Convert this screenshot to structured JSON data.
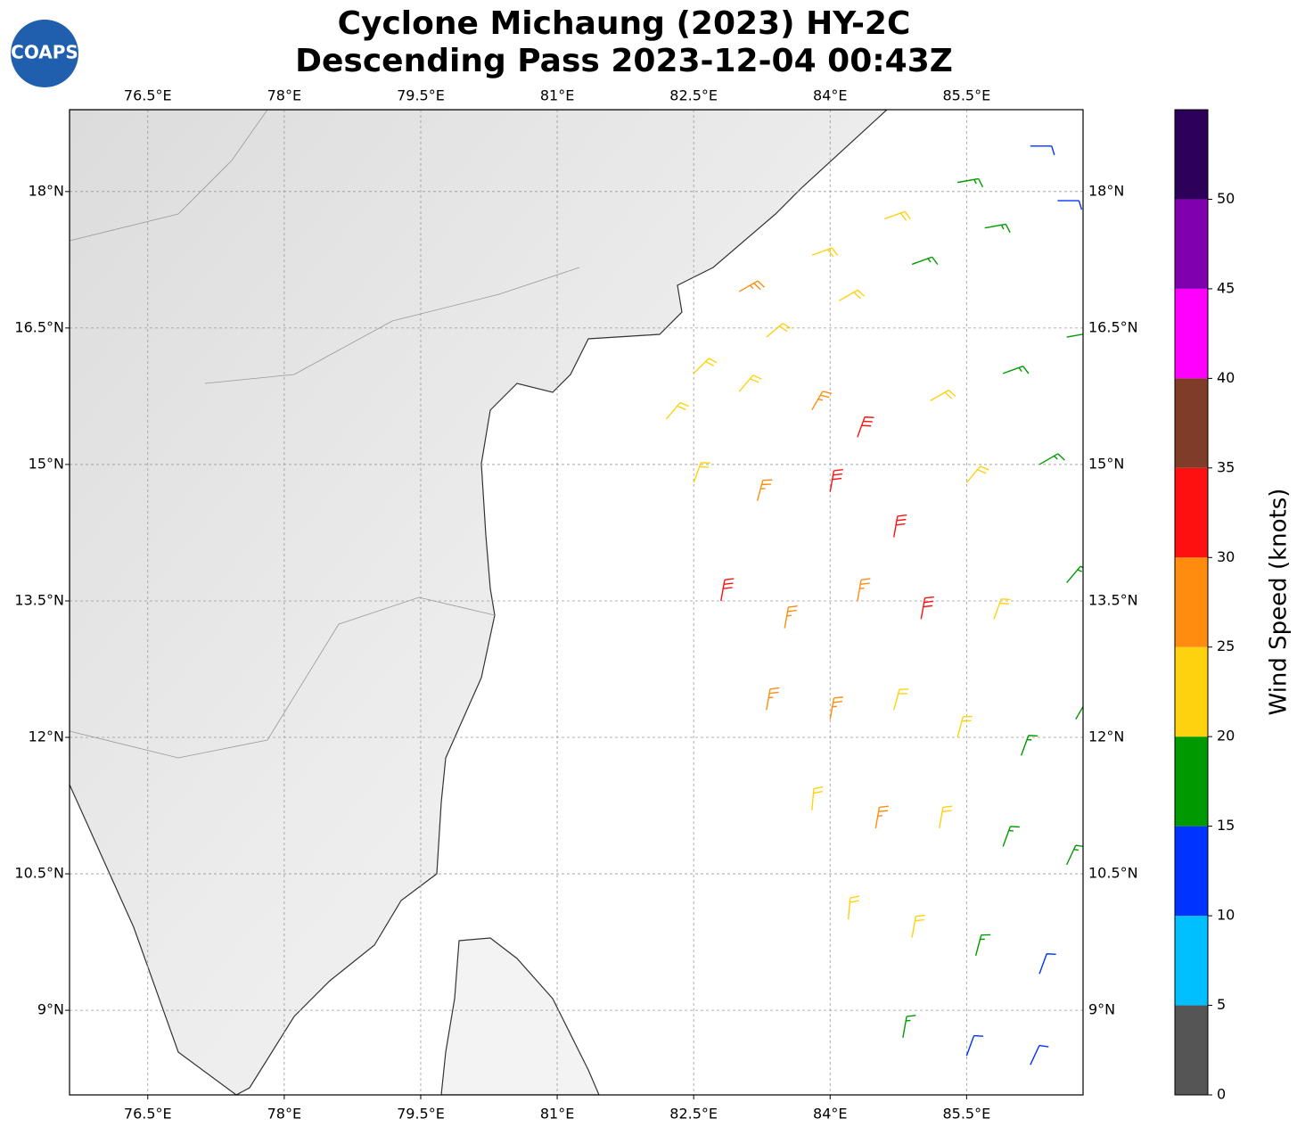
{
  "chart_data": {
    "type": "barb-map",
    "title": "Cyclone Michaung (2023) HY-2C",
    "subtitle": "Descending Pass 2023-12-04 00:43Z",
    "logo": "COAPS",
    "xlim": [
      75.64,
      86.78
    ],
    "ylim": [
      8.07,
      18.9
    ],
    "xticks": [
      {
        "value": 76.5,
        "label": "76.5°E"
      },
      {
        "value": 78,
        "label": "78°E"
      },
      {
        "value": 79.5,
        "label": "79.5°E"
      },
      {
        "value": 81,
        "label": "81°E"
      },
      {
        "value": 82.5,
        "label": "82.5°E"
      },
      {
        "value": 84,
        "label": "84°E"
      },
      {
        "value": 85.5,
        "label": "85.5°E"
      }
    ],
    "yticks": [
      {
        "value": 9,
        "label": "9°N"
      },
      {
        "value": 10.5,
        "label": "10.5°N"
      },
      {
        "value": 12,
        "label": "12°N"
      },
      {
        "value": 13.5,
        "label": "13.5°N"
      },
      {
        "value": 15,
        "label": "15°N"
      },
      {
        "value": 16.5,
        "label": "16.5°N"
      },
      {
        "value": 18,
        "label": "18°N"
      }
    ],
    "grid": true,
    "barbs": [
      [
        83.0,
        16.9,
        27,
        60
      ],
      [
        83.8,
        17.3,
        22,
        70
      ],
      [
        84.6,
        17.7,
        22,
        70
      ],
      [
        85.4,
        18.1,
        17,
        80
      ],
      [
        86.2,
        18.5,
        12,
        90
      ],
      [
        82.5,
        16.0,
        22,
        45
      ],
      [
        83.3,
        16.4,
        22,
        50
      ],
      [
        84.1,
        16.8,
        22,
        60
      ],
      [
        84.9,
        17.2,
        17,
        70
      ],
      [
        85.7,
        17.6,
        17,
        80
      ],
      [
        86.5,
        17.9,
        12,
        90
      ],
      [
        82.2,
        15.5,
        22,
        40
      ],
      [
        83.0,
        15.8,
        22,
        40
      ],
      [
        83.8,
        15.6,
        27,
        30
      ],
      [
        84.3,
        15.3,
        32,
        20
      ],
      [
        85.1,
        15.7,
        22,
        60
      ],
      [
        85.9,
        16.0,
        17,
        70
      ],
      [
        86.6,
        16.4,
        17,
        80
      ],
      [
        82.5,
        14.8,
        22,
        20
      ],
      [
        83.2,
        14.6,
        27,
        15
      ],
      [
        84.0,
        14.7,
        32,
        10
      ],
      [
        84.7,
        14.2,
        32,
        10
      ],
      [
        85.5,
        14.8,
        22,
        40
      ],
      [
        86.3,
        15.0,
        17,
        60
      ],
      [
        82.8,
        13.5,
        32,
        10
      ],
      [
        83.5,
        13.2,
        27,
        10
      ],
      [
        84.3,
        13.5,
        27,
        10
      ],
      [
        85.0,
        13.3,
        32,
        10
      ],
      [
        85.8,
        13.3,
        22,
        20
      ],
      [
        86.6,
        13.7,
        17,
        40
      ],
      [
        83.3,
        12.3,
        27,
        10
      ],
      [
        84.0,
        12.2,
        27,
        10
      ],
      [
        84.7,
        12.3,
        22,
        15
      ],
      [
        85.4,
        12.0,
        22,
        15
      ],
      [
        86.1,
        11.8,
        17,
        20
      ],
      [
        86.7,
        12.2,
        17,
        30
      ],
      [
        83.8,
        11.2,
        22,
        5
      ],
      [
        84.5,
        11.0,
        27,
        10
      ],
      [
        85.2,
        11.0,
        22,
        10
      ],
      [
        85.9,
        10.8,
        17,
        20
      ],
      [
        86.6,
        10.6,
        17,
        25
      ],
      [
        84.2,
        10.0,
        22,
        5
      ],
      [
        84.9,
        9.8,
        22,
        10
      ],
      [
        85.6,
        9.6,
        17,
        15
      ],
      [
        86.3,
        9.4,
        12,
        20
      ],
      [
        84.8,
        8.7,
        17,
        10
      ],
      [
        85.5,
        8.5,
        12,
        20
      ],
      [
        86.2,
        8.4,
        12,
        25
      ]
    ],
    "colorbar": {
      "label": "Wind Speed (knots)",
      "clim": [
        0,
        55
      ],
      "bounds": [
        0,
        5,
        10,
        15,
        20,
        25,
        30,
        35,
        40,
        45,
        50,
        55
      ],
      "colors": [
        "#555555",
        "#00bfff",
        "#0033ff",
        "#009900",
        "#ffd20f",
        "#ff8c0f",
        "#ff1010",
        "#7f3d29",
        "#ff00ff",
        "#8000b0",
        "#2d005a"
      ],
      "ticks": [
        0,
        5,
        10,
        15,
        20,
        25,
        30,
        35,
        40,
        45,
        50
      ]
    }
  }
}
